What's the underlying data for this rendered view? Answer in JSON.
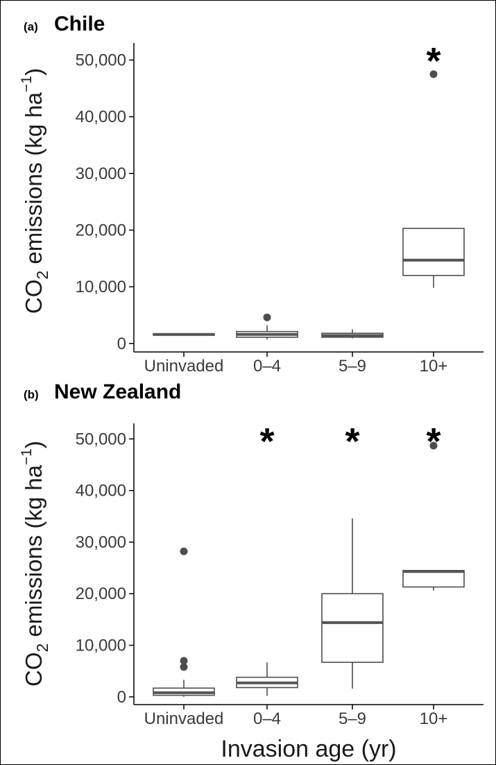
{
  "colors": {
    "box_stroke": "#4d4d4d",
    "median": "#555555",
    "outlier": "#4d4d4d",
    "axis": "#000000"
  },
  "chart_data": [
    {
      "type": "boxplot",
      "panel": "(a)",
      "title": "Chile",
      "ylabel_main": "CO",
      "ylabel_sub": "2",
      "ylabel_rest": " emissions (kg ha",
      "ylabel_sup": "−1",
      "ylabel_close": ")",
      "xlabel": "",
      "ylim": [
        -1500,
        53000
      ],
      "yticks": [
        0,
        10000,
        20000,
        30000,
        40000,
        50000
      ],
      "ytick_labels": [
        "0",
        "10,000",
        "20,000",
        "30,000",
        "40,000",
        "50,000"
      ],
      "categories": [
        "Uninvaded",
        "0–4",
        "5–9",
        "10+"
      ],
      "boxes": [
        {
          "min": 1500,
          "q1": 1550,
          "median": 1600,
          "q3": 1700,
          "max": 1750,
          "outliers": []
        },
        {
          "min": 700,
          "q1": 1100,
          "median": 1600,
          "q3": 2100,
          "max": 3200,
          "outliers": [
            4600
          ]
        },
        {
          "min": 900,
          "q1": 1100,
          "median": 1400,
          "q3": 1800,
          "max": 2500,
          "outliers": []
        },
        {
          "min": 9800,
          "q1": 12000,
          "median": 14700,
          "q3": 20300,
          "max": 20300,
          "outliers": [
            47500
          ]
        }
      ],
      "significance": [
        "",
        "",
        "",
        "*"
      ]
    },
    {
      "type": "boxplot",
      "panel": "(b)",
      "title": "New Zealand",
      "ylabel_main": "CO",
      "ylabel_sub": "2",
      "ylabel_rest": " emissions (kg ha",
      "ylabel_sup": "−1",
      "ylabel_close": ")",
      "xlabel": "Invasion age (yr)",
      "ylim": [
        -1500,
        53000
      ],
      "yticks": [
        0,
        10000,
        20000,
        30000,
        40000,
        50000
      ],
      "ytick_labels": [
        "0",
        "10,000",
        "20,000",
        "30,000",
        "40,000",
        "50,000"
      ],
      "categories": [
        "Uninvaded",
        "0–4",
        "5–9",
        "10+"
      ],
      "boxes": [
        {
          "min": 0,
          "q1": 300,
          "median": 800,
          "q3": 1700,
          "max": 3300,
          "outliers": [
            5800,
            7000,
            28200
          ]
        },
        {
          "min": 200,
          "q1": 1800,
          "median": 2700,
          "q3": 3800,
          "max": 6700,
          "outliers": []
        },
        {
          "min": 1600,
          "q1": 6700,
          "median": 14400,
          "q3": 20000,
          "max": 34600,
          "outliers": []
        },
        {
          "min": 20600,
          "q1": 21300,
          "median": 24300,
          "q3": 24500,
          "max": 24500,
          "outliers": [
            48700
          ]
        }
      ],
      "significance": [
        "",
        "*",
        "*",
        "*"
      ]
    }
  ]
}
